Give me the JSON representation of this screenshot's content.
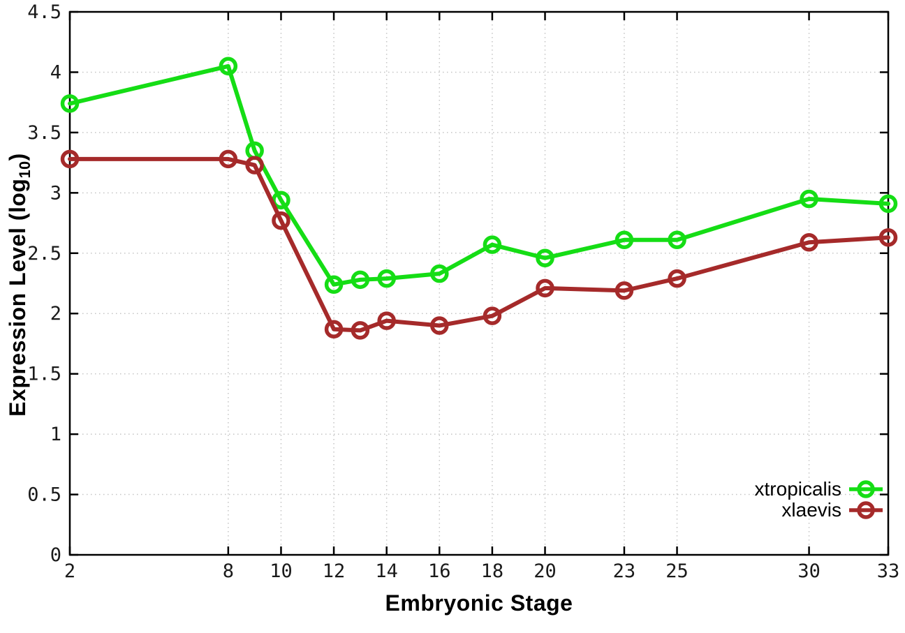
{
  "chart_data": {
    "type": "line",
    "title": "",
    "xlabel": "Embryonic Stage",
    "ylabel": {
      "text": "Expression Level (log10)",
      "main": "Expression Level (log",
      "sub": "10",
      "suffix": ")"
    },
    "x": [
      2,
      8,
      9,
      10,
      12,
      13,
      14,
      16,
      18,
      20,
      23,
      25,
      30,
      33
    ],
    "series": [
      {
        "name": "xtropicalis",
        "color": "#15dd15",
        "values": [
          3.74,
          4.05,
          3.35,
          2.94,
          2.24,
          2.28,
          2.29,
          2.33,
          2.57,
          2.46,
          2.61,
          2.61,
          2.95,
          2.91
        ]
      },
      {
        "name": "xlaevis",
        "color": "#a52a2a",
        "values": [
          3.28,
          3.28,
          3.23,
          2.77,
          1.87,
          1.86,
          1.94,
          1.9,
          1.98,
          2.21,
          2.19,
          2.29,
          2.59,
          2.63
        ]
      }
    ],
    "xlim": [
      2,
      33
    ],
    "ylim": [
      0,
      4.5
    ],
    "x_ticks": [
      2,
      8,
      10,
      12,
      14,
      16,
      18,
      20,
      23,
      25,
      30,
      33
    ],
    "x_tick_labels": [
      "2",
      "8",
      "10",
      "12",
      "14",
      "16",
      "18",
      "20",
      "23",
      "25",
      "30",
      "33"
    ],
    "y_ticks": [
      0,
      0.5,
      1,
      1.5,
      2,
      2.5,
      3,
      3.5,
      4,
      4.5
    ],
    "y_tick_labels": [
      "0",
      "0.5",
      "1",
      "1.5",
      "2",
      "2.5",
      "3",
      "3.5",
      "4",
      "4.5"
    ],
    "grid": true,
    "legend_position": "bottom-right",
    "marker": "open-circle",
    "background": "#ffffff",
    "grid_color": "#c4c4c4",
    "axis_color": "#000000"
  }
}
